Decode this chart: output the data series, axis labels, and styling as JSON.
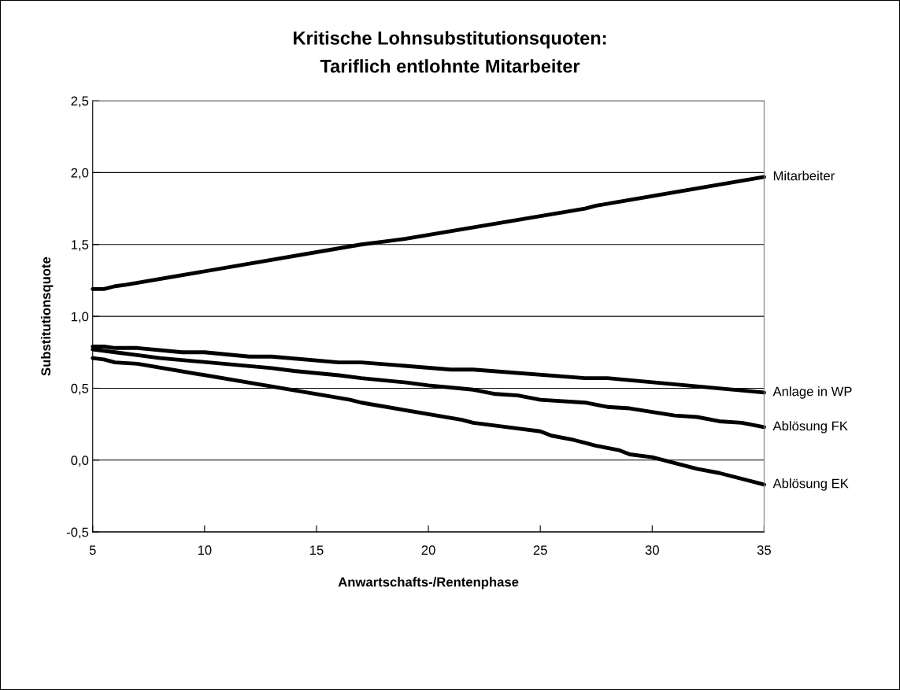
{
  "chart_data": {
    "type": "line",
    "title": "Kritische Lohnsubstitutionsquoten:\nTariflich entlohnte Mitarbeiter",
    "xlabel": "Anwartschafts-/Rentenphase",
    "ylabel": "Substitutionsquote",
    "xlim": [
      5,
      35
    ],
    "xticks": [
      5,
      10,
      15,
      20,
      25,
      30,
      35
    ],
    "ylim": [
      -0.5,
      2.5
    ],
    "yticks": [
      {
        "value": -0.5,
        "label": "-0,5"
      },
      {
        "value": 0,
        "label": "0,0"
      },
      {
        "value": 0.5,
        "label": "0,5"
      },
      {
        "value": 1,
        "label": "1,0"
      },
      {
        "value": 1.5,
        "label": "1,5"
      },
      {
        "value": 2,
        "label": "2,0"
      },
      {
        "value": 2.5,
        "label": "2,5"
      }
    ],
    "grid": "y",
    "legend": false,
    "marker": "none",
    "line_style": "solid",
    "series": [
      {
        "name": "Mitarbeiter",
        "color": "#000000",
        "x": [
          5,
          5.5,
          6,
          6.5,
          17,
          18,
          19,
          27,
          27.5,
          35
        ],
        "values": [
          1.19,
          1.19,
          1.21,
          1.22,
          1.5,
          1.52,
          1.54,
          1.75,
          1.77,
          1.97
        ]
      },
      {
        "name": "Anlage in WP",
        "color": "#000000",
        "x": [
          5,
          5.5,
          6,
          7,
          9,
          10,
          12,
          13,
          16,
          17,
          21,
          22,
          27,
          28,
          35
        ],
        "values": [
          0.79,
          0.79,
          0.78,
          0.78,
          0.75,
          0.75,
          0.72,
          0.72,
          0.68,
          0.68,
          0.63,
          0.63,
          0.57,
          0.57,
          0.47
        ]
      },
      {
        "name": "Ablösung FK",
        "color": "#000000",
        "x": [
          5,
          6,
          7,
          8,
          13,
          14,
          16,
          17,
          19,
          20,
          22,
          23,
          24,
          25,
          27,
          28,
          29,
          31,
          32,
          33,
          34,
          35
        ],
        "values": [
          0.77,
          0.75,
          0.73,
          0.71,
          0.64,
          0.62,
          0.59,
          0.57,
          0.54,
          0.52,
          0.49,
          0.46,
          0.45,
          0.42,
          0.4,
          0.37,
          0.36,
          0.31,
          0.3,
          0.27,
          0.26,
          0.23
        ]
      },
      {
        "name": "Ablösung EK",
        "color": "#000000",
        "x": [
          5,
          5.5,
          6,
          7,
          16.5,
          17,
          21.5,
          22,
          24,
          25,
          25.5,
          26.5,
          27,
          27.5,
          28.5,
          29,
          30,
          32,
          33,
          35
        ],
        "values": [
          0.71,
          0.7,
          0.68,
          0.67,
          0.42,
          0.4,
          0.28,
          0.26,
          0.22,
          0.2,
          0.17,
          0.14,
          0.12,
          0.1,
          0.07,
          0.04,
          0.02,
          -0.06,
          -0.09,
          -0.17
        ]
      }
    ]
  }
}
